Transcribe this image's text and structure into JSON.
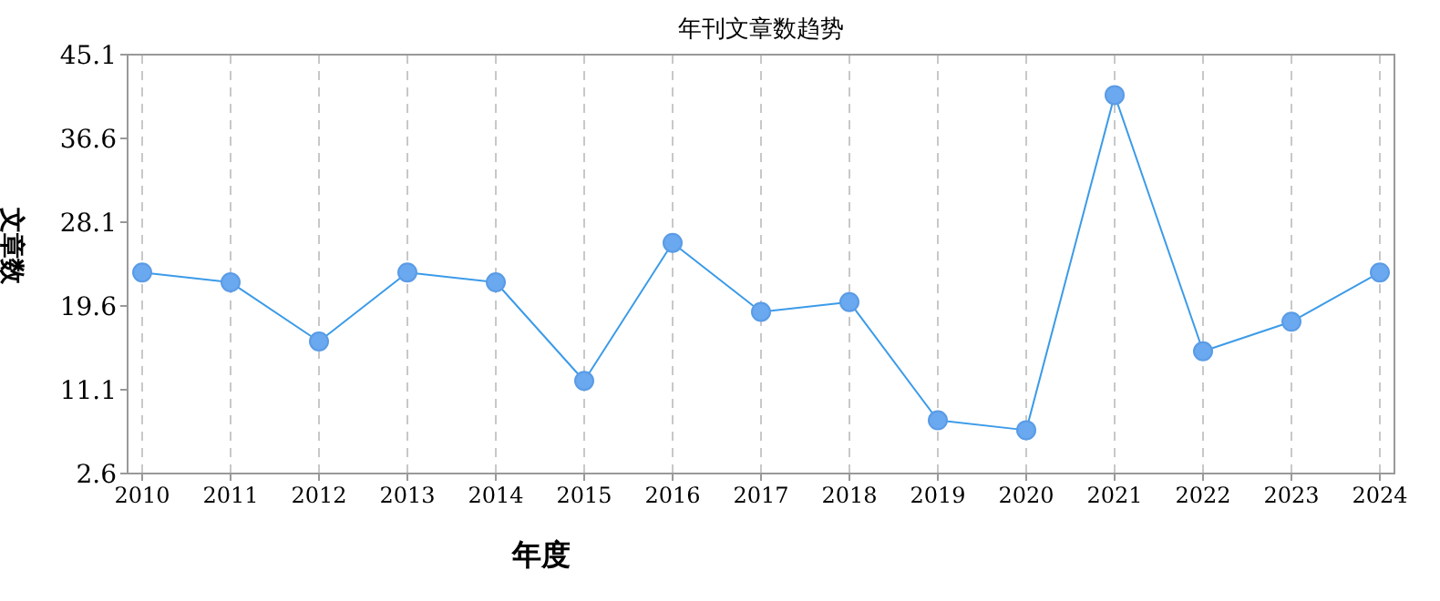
{
  "chart_data": {
    "type": "line",
    "title": "年刊文章数趋势",
    "xlabel": "年度",
    "ylabel": "文章数",
    "categories": [
      "2010",
      "2011",
      "2012",
      "2013",
      "2014",
      "2015",
      "2016",
      "2017",
      "2018",
      "2019",
      "2020",
      "2021",
      "2022",
      "2023",
      "2024"
    ],
    "series": [
      {
        "color": "#3c9be8",
        "values": [
          23,
          22,
          16,
          23,
          22,
          12,
          26,
          19,
          20,
          8,
          7,
          41,
          15,
          18,
          23
        ]
      }
    ],
    "ylim": [
      2.6,
      45.1
    ],
    "yticks": [
      2.6,
      11.1,
      19.6,
      28.1,
      36.6,
      45.1
    ],
    "grid": "x",
    "marker": "circle",
    "line_style": "solid"
  }
}
